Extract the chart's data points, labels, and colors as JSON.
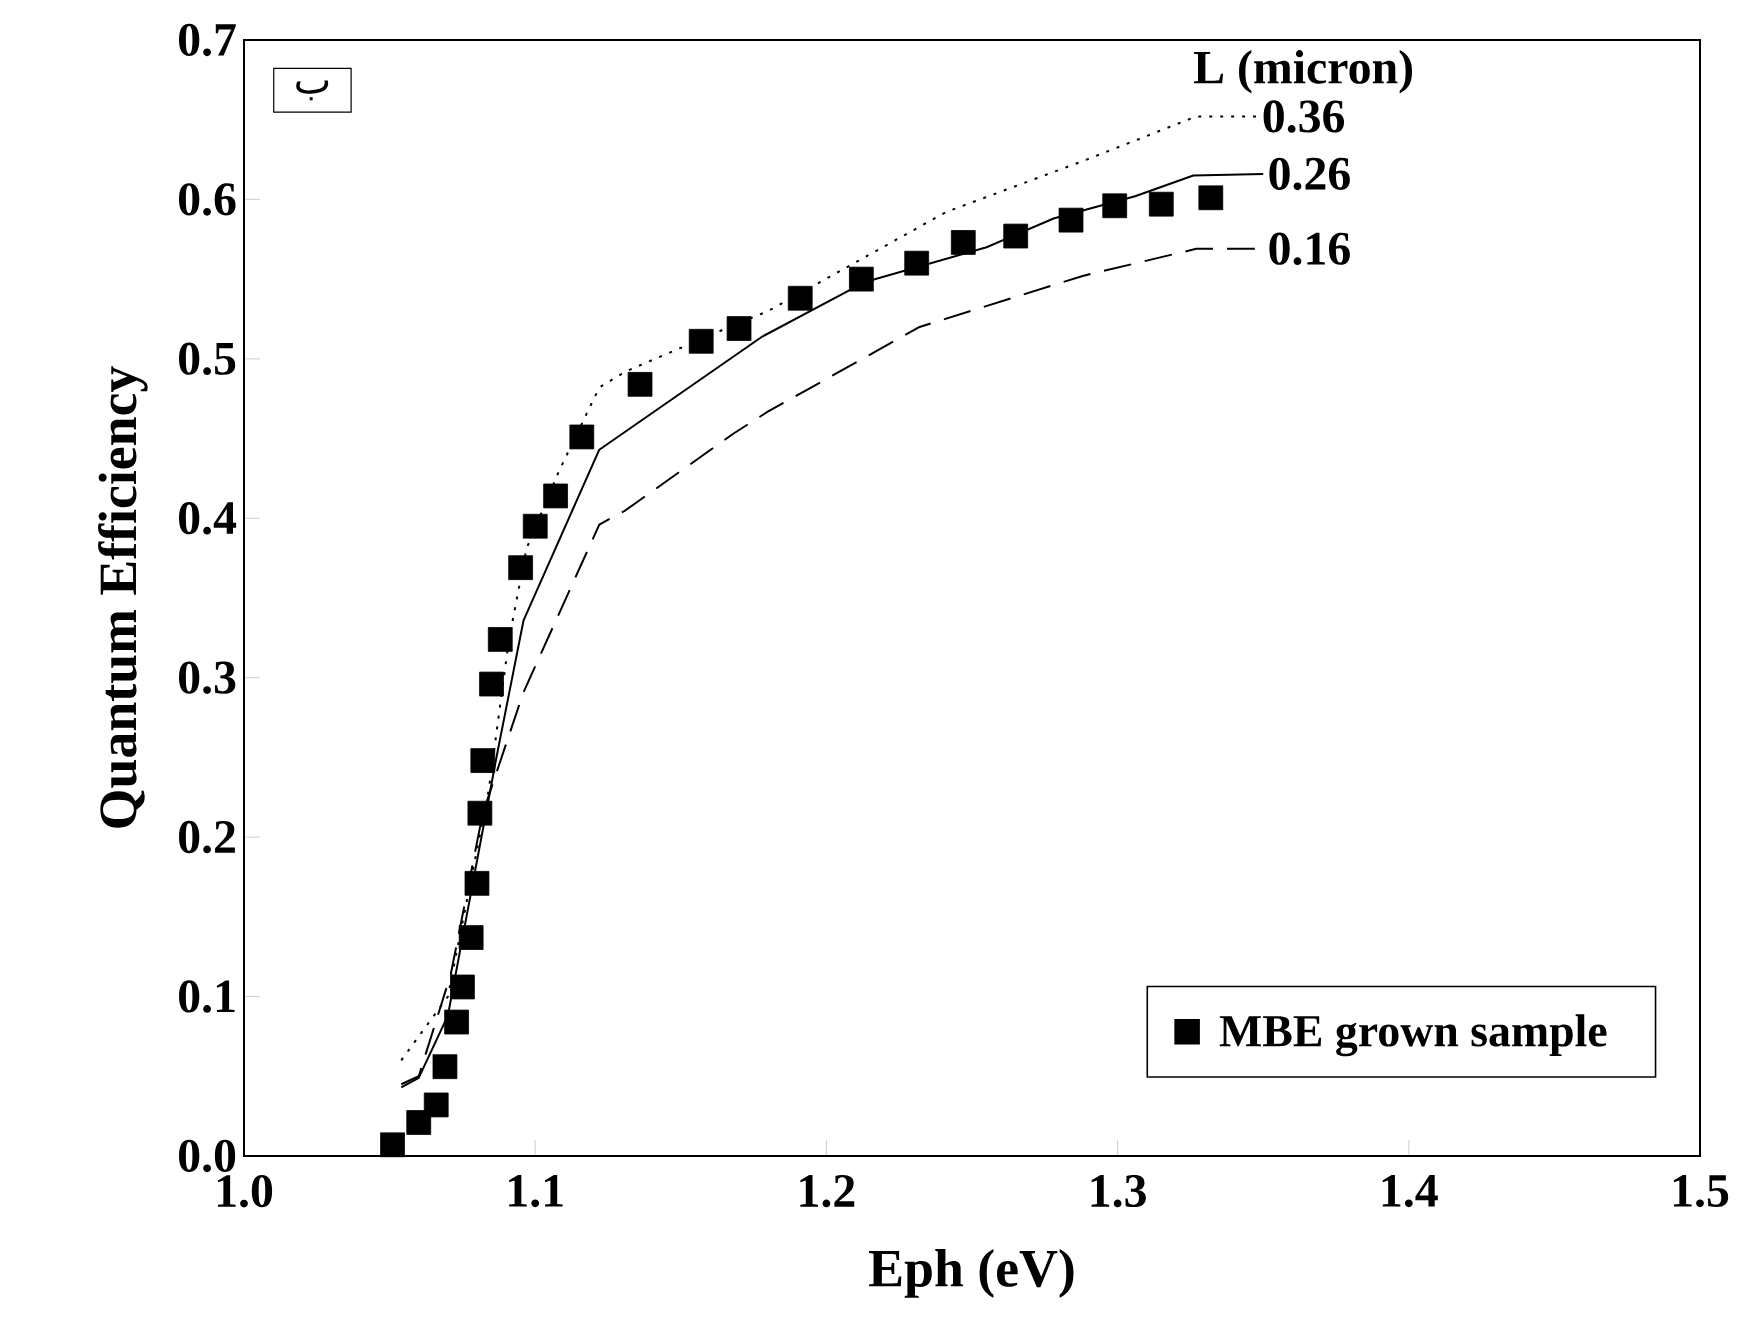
{
  "chart_data": {
    "type": "line",
    "xlabel": "Eph (eV)",
    "ylabel": "Quantum Efficiency",
    "legend_title": "L (micron)",
    "annotations": [
      "ب"
    ],
    "xlim": [
      1.0,
      1.5
    ],
    "ylim": [
      0.0,
      0.7
    ],
    "xticks": [
      {
        "value": 1.0,
        "label": "1.0"
      },
      {
        "value": 1.1,
        "label": "1.1"
      },
      {
        "value": 1.2,
        "label": "1.2"
      },
      {
        "value": 1.3,
        "label": "1.3"
      },
      {
        "value": 1.4,
        "label": "1.4"
      },
      {
        "value": 1.5,
        "label": "1.5"
      }
    ],
    "yticks": [
      {
        "value": 0.0,
        "label": "0.0"
      },
      {
        "value": 0.1,
        "label": "0.1"
      },
      {
        "value": 0.2,
        "label": "0.2"
      },
      {
        "value": 0.3,
        "label": "0.3"
      },
      {
        "value": 0.4,
        "label": "0.4"
      },
      {
        "value": 0.5,
        "label": "0.5"
      },
      {
        "value": 0.6,
        "label": "0.6"
      },
      {
        "value": 0.7,
        "label": "0.7"
      }
    ],
    "legend": "bottom right",
    "series": [
      {
        "name": "0.36",
        "type": "line",
        "color": "#000000",
        "line_style": "dotted",
        "marker": "none",
        "x": [
          1.054,
          1.07,
          1.084,
          1.091,
          1.097,
          1.108,
          1.122,
          1.131,
          1.168,
          1.18,
          1.241,
          1.288,
          1.327,
          1.348
        ],
        "values": [
          0.06,
          0.1,
          0.229,
          0.324,
          0.381,
          0.429,
          0.482,
          0.492,
          0.521,
          0.53,
          0.592,
          0.624,
          0.652,
          0.652
        ]
      },
      {
        "name": "0.26",
        "type": "line",
        "color": "#000000",
        "line_style": "solid",
        "marker": "none",
        "x": [
          1.054,
          1.06,
          1.07,
          1.087,
          1.096,
          1.122,
          1.178,
          1.213,
          1.255,
          1.278,
          1.306,
          1.326,
          1.35
        ],
        "values": [
          0.043,
          0.049,
          0.088,
          0.253,
          0.336,
          0.443,
          0.514,
          0.548,
          0.57,
          0.588,
          0.602,
          0.615,
          0.616
        ]
      },
      {
        "name": "0.16",
        "type": "line",
        "color": "#000000",
        "line_style": "dashed",
        "marker": "none",
        "x": [
          1.054,
          1.06,
          1.071,
          1.082,
          1.096,
          1.122,
          1.131,
          1.168,
          1.18,
          1.232,
          1.288,
          1.327,
          1.35
        ],
        "values": [
          0.045,
          0.05,
          0.114,
          0.215,
          0.291,
          0.396,
          0.405,
          0.453,
          0.467,
          0.52,
          0.552,
          0.569,
          0.569
        ]
      },
      {
        "name": "MBE grown sample",
        "type": "scatter",
        "color": "#000000",
        "marker": "square",
        "x": [
          1.051,
          1.06,
          1.066,
          1.069,
          1.073,
          1.075,
          1.078,
          1.08,
          1.081,
          1.082,
          1.085,
          1.088,
          1.095,
          1.1,
          1.107,
          1.116,
          1.136,
          1.157,
          1.17,
          1.191,
          1.212,
          1.231,
          1.247,
          1.265,
          1.284,
          1.299,
          1.315,
          1.332
        ],
        "values": [
          0.007,
          0.021,
          0.032,
          0.056,
          0.084,
          0.106,
          0.137,
          0.171,
          0.215,
          0.248,
          0.296,
          0.324,
          0.369,
          0.395,
          0.414,
          0.451,
          0.484,
          0.511,
          0.519,
          0.538,
          0.55,
          0.56,
          0.573,
          0.577,
          0.587,
          0.596,
          0.597,
          0.601
        ]
      }
    ]
  }
}
